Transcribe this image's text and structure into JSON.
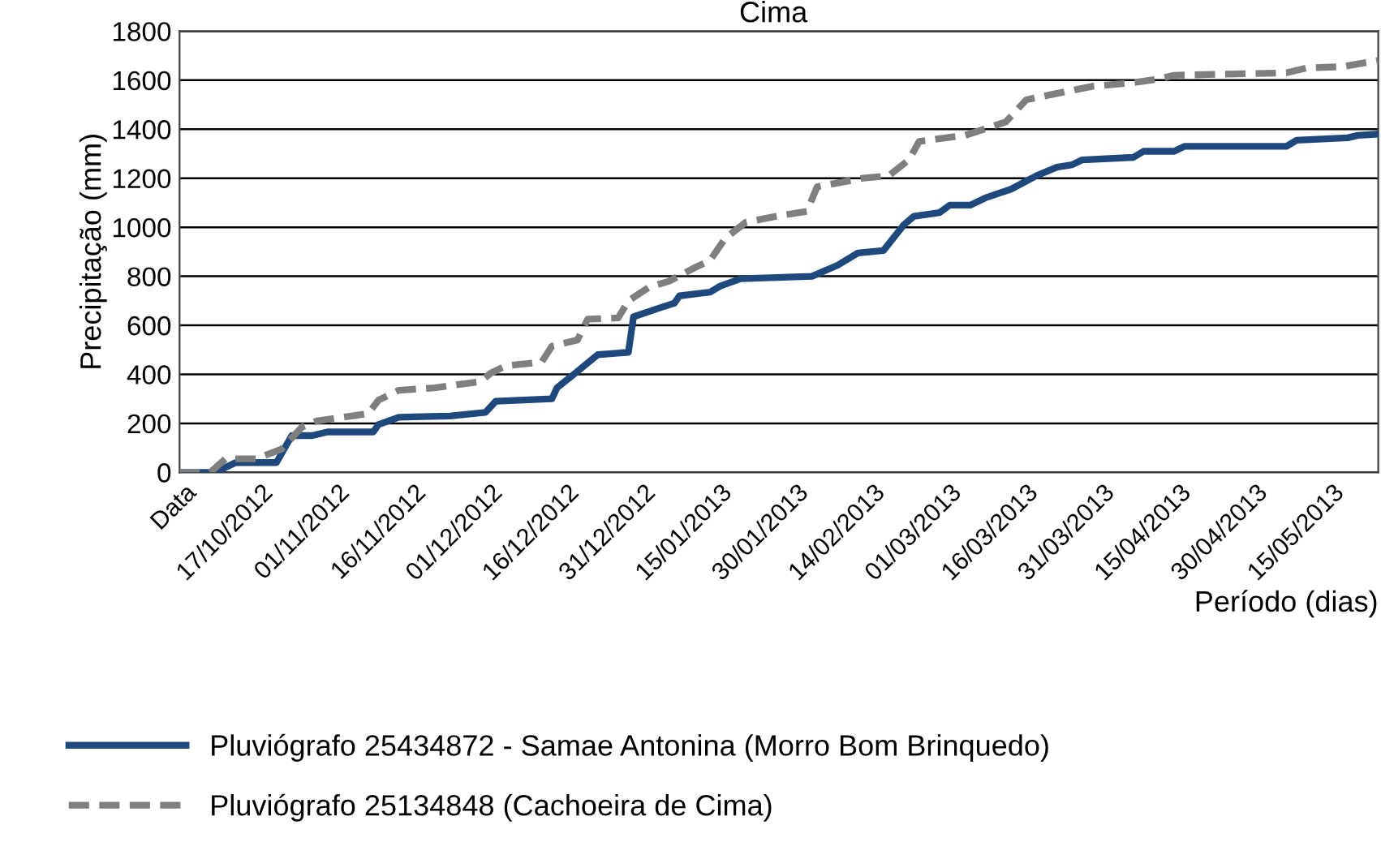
{
  "chart_data": {
    "type": "line",
    "title": "Cima",
    "xlabel": "Período (dias)",
    "ylabel": "Precipitação (mm)",
    "xlim": [
      "2012-10-01",
      "2013-05-24"
    ],
    "xticks": [
      {
        "value": "2012-10-02",
        "label": "Data"
      },
      {
        "value": "2012-10-17",
        "label": "17/10/2012"
      },
      {
        "value": "2012-11-01",
        "label": "01/11/2012"
      },
      {
        "value": "2012-11-16",
        "label": "16/11/2012"
      },
      {
        "value": "2012-12-01",
        "label": "01/12/2012"
      },
      {
        "value": "2012-12-16",
        "label": "16/12/2012"
      },
      {
        "value": "2012-12-31",
        "label": "31/12/2012"
      },
      {
        "value": "2013-01-15",
        "label": "15/01/2013"
      },
      {
        "value": "2013-01-30",
        "label": "30/01/2013"
      },
      {
        "value": "2013-02-14",
        "label": "14/02/2013"
      },
      {
        "value": "2013-03-01",
        "label": "01/03/2013"
      },
      {
        "value": "2013-03-16",
        "label": "16/03/2013"
      },
      {
        "value": "2013-03-31",
        "label": "31/03/2013"
      },
      {
        "value": "2013-04-15",
        "label": "15/04/2013"
      },
      {
        "value": "2013-04-30",
        "label": "30/04/2013"
      },
      {
        "value": "2013-05-15",
        "label": "15/05/2013"
      }
    ],
    "ylim": [
      0,
      1800
    ],
    "yticks": [
      0,
      200,
      400,
      600,
      800,
      1000,
      1200,
      1400,
      1600,
      1800
    ],
    "grid": "y",
    "legend": "bottom",
    "marker": "none",
    "series": [
      {
        "name": "Pluviógrafo 25434872 - Samae Antonina (Morro Bom Brinquedo)",
        "color": "#1f497d",
        "line_style": "solid",
        "x": [
          "2012-10-01",
          "2012-10-08",
          "2012-10-12",
          "2012-10-20",
          "2012-10-23",
          "2012-10-27",
          "2012-10-30",
          "2012-11-08",
          "2012-11-09",
          "2012-11-13",
          "2012-11-23",
          "2012-11-30",
          "2012-12-02",
          "2012-12-13",
          "2012-12-14",
          "2012-12-17",
          "2012-12-22",
          "2012-12-28",
          "2012-12-29",
          "2013-01-03",
          "2013-01-06",
          "2013-01-07",
          "2013-01-11",
          "2013-01-13",
          "2013-01-15",
          "2013-01-19",
          "2013-02-02",
          "2013-02-07",
          "2013-02-11",
          "2013-02-16",
          "2013-02-20",
          "2013-02-22",
          "2013-02-27",
          "2013-03-01",
          "2013-03-05",
          "2013-03-08",
          "2013-03-13",
          "2013-03-18",
          "2013-03-22",
          "2013-03-25",
          "2013-03-27",
          "2013-04-06",
          "2013-04-08",
          "2013-04-14",
          "2013-04-16",
          "2013-05-06",
          "2013-05-08",
          "2013-05-18",
          "2013-05-20",
          "2013-05-24"
        ],
        "values": [
          0,
          0,
          40,
          40,
          150,
          150,
          165,
          165,
          195,
          225,
          230,
          245,
          290,
          300,
          345,
          395,
          480,
          490,
          635,
          670,
          690,
          720,
          730,
          735,
          760,
          790,
          800,
          845,
          895,
          905,
          1010,
          1045,
          1060,
          1090,
          1090,
          1120,
          1155,
          1210,
          1245,
          1255,
          1275,
          1285,
          1310,
          1310,
          1330,
          1330,
          1355,
          1365,
          1375,
          1380
        ]
      },
      {
        "name": "Pluviógrafo 25134848 (Cachoeira de Cima)",
        "color": "#7f7f7f",
        "line_style": "dashed",
        "x": [
          "2012-10-01",
          "2012-10-07",
          "2012-10-10",
          "2012-10-16",
          "2012-10-21",
          "2012-10-25",
          "2012-10-28",
          "2012-11-02",
          "2012-11-07",
          "2012-11-09",
          "2012-11-13",
          "2012-11-20",
          "2012-11-29",
          "2012-12-01",
          "2012-12-04",
          "2012-12-11",
          "2012-12-13",
          "2012-12-18",
          "2012-12-20",
          "2012-12-26",
          "2012-12-28",
          "2013-01-01",
          "2013-01-05",
          "2013-01-10",
          "2013-01-13",
          "2013-01-16",
          "2013-01-20",
          "2013-01-26",
          "2013-02-01",
          "2013-02-03",
          "2013-02-12",
          "2013-02-17",
          "2013-02-21",
          "2013-02-23",
          "2013-03-04",
          "2013-03-07",
          "2013-03-12",
          "2013-03-16",
          "2013-03-23",
          "2013-03-29",
          "2013-04-06",
          "2013-04-11",
          "2013-04-14",
          "2013-05-06",
          "2013-05-10",
          "2013-05-17",
          "2013-05-24"
        ],
        "values": [
          0,
          0,
          55,
          55,
          95,
          185,
          210,
          225,
          240,
          295,
          335,
          345,
          370,
          405,
          435,
          450,
          515,
          540,
          625,
          630,
          700,
          755,
          780,
          835,
          865,
          955,
          1020,
          1045,
          1065,
          1165,
          1200,
          1210,
          1275,
          1350,
          1375,
          1395,
          1430,
          1520,
          1550,
          1575,
          1590,
          1605,
          1620,
          1630,
          1650,
          1655,
          1680
        ]
      }
    ]
  }
}
